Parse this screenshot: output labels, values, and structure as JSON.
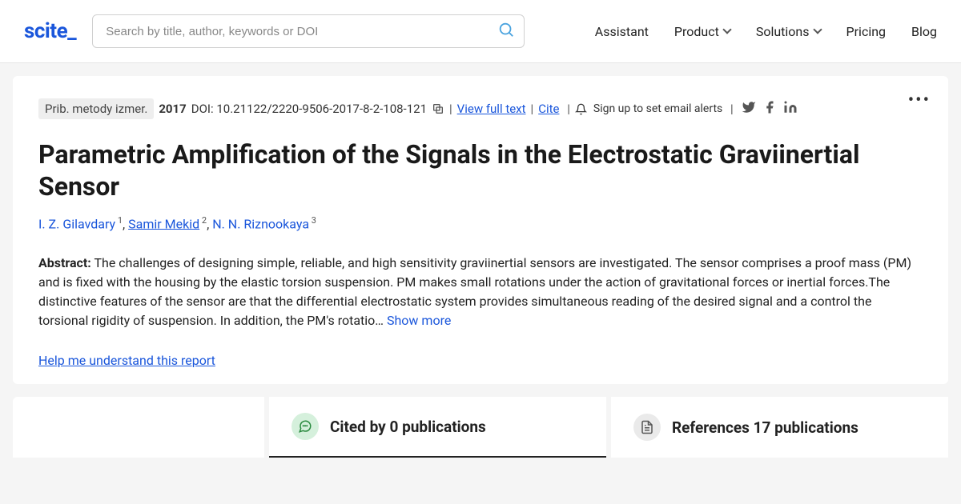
{
  "header": {
    "logo": "scite_",
    "search_placeholder": "Search by title, author, keywords or DOI",
    "nav": {
      "assistant": "Assistant",
      "product": "Product",
      "solutions": "Solutions",
      "pricing": "Pricing",
      "blog": "Blog"
    }
  },
  "paper": {
    "journal": "Prib. metody izmer.",
    "year": "2017",
    "doi_label": "DOI: 10.21122/2220-9506-2017-8-2-108-121",
    "view_full_text": "View full text",
    "cite": "Cite",
    "alerts": "Sign up to set email alerts",
    "title": "Parametric Amplification of the Signals in the Electrostatic Graviinertial Sensor",
    "authors": [
      {
        "name": "I. Z. Gilavdary",
        "sup": "1",
        "link": false
      },
      {
        "name": "Samir Mekid",
        "sup": "2",
        "link": true
      },
      {
        "name": "N. N. Riznookaya",
        "sup": "3",
        "link": false
      }
    ],
    "abstract_label": "Abstract:",
    "abstract_text": "The challenges of designing simple, reliable, and high sensitivity graviinertial sensors are investigated. The sensor comprises a proof mass (PM) and is fixed with the housing by the elastic torsion suspension. PM makes small rotations under the action of gravitational forces or inertial forces.The distinctive features of the sensor are that the differential electrostatic system provides simultaneous reading of the desired signal and a control the torsional rigidity of suspension. In addition, the PM's rotatio…",
    "show_more": "Show more",
    "help_link": "Help me understand this report"
  },
  "tabs": {
    "cited": "Cited by 0 publications",
    "references": "References 17 publications"
  },
  "colors": {
    "primary": "#1a56db",
    "background": "#f5f5f5",
    "icon_green_bg": "#d5f0dc",
    "icon_grey_bg": "#eaeaea"
  }
}
